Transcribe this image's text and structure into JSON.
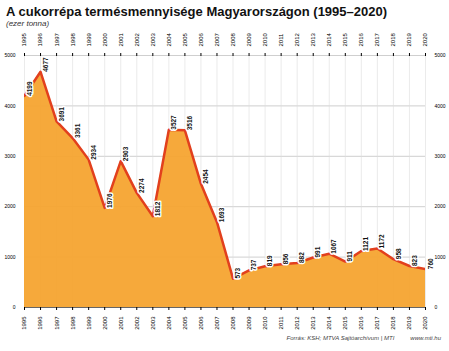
{
  "chart_data": {
    "type": "area",
    "title": "A cukorrépa termésmennyisége Magyarországon (1995–2020)",
    "subtitle": "(ezer tonna)",
    "x": [
      1995,
      1996,
      1997,
      1998,
      1999,
      2000,
      2001,
      2002,
      2003,
      2004,
      2005,
      2006,
      2007,
      2008,
      2009,
      2010,
      2011,
      2012,
      2013,
      2014,
      2015,
      2016,
      2017,
      2018,
      2019,
      2020
    ],
    "values": [
      4199,
      4677,
      3691,
      3361,
      2934,
      1976,
      2903,
      2274,
      1812,
      3527,
      3516,
      2454,
      1693,
      573,
      737,
      819,
      856,
      882,
      991,
      1067,
      911,
      1121,
      1172,
      958,
      823,
      760
    ],
    "xlim": [
      1995,
      2020
    ],
    "xticks": [
      1995,
      1996,
      1997,
      1998,
      1999,
      2000,
      2001,
      2002,
      2003,
      2004,
      2005,
      2006,
      2007,
      2008,
      2009,
      2010,
      2011,
      2012,
      2013,
      2014,
      2015,
      2016,
      2017,
      2018,
      2019,
      2020
    ],
    "ylim": [
      0,
      5000
    ],
    "yticks": [
      0,
      1000,
      2000,
      3000,
      4000,
      5000
    ],
    "grid": true,
    "data_labels": true,
    "color": "#f5a430",
    "annotations": [
      "Forrás: KSH; MTVA Sajtóarchívum | MTI",
      "www.mti.hu"
    ]
  }
}
